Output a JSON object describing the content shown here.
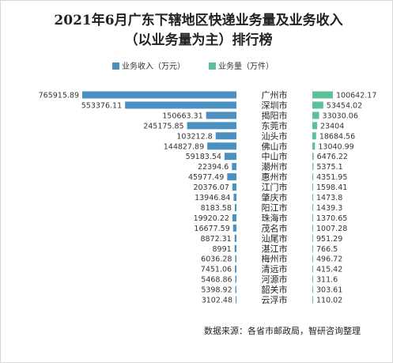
{
  "chart_data": {
    "type": "bar",
    "title_line1": "2021年6月广东下辖地区快递业务量及业务收入",
    "title_line2": "（以业务量为主）排行榜",
    "categories": [
      "广州市",
      "深圳市",
      "揭阳市",
      "东莞市",
      "汕头市",
      "佛山市",
      "中山市",
      "潮州市",
      "惠州市",
      "江门市",
      "肇庆市",
      "阳江市",
      "珠海市",
      "茂名市",
      "汕尾市",
      "湛江市",
      "梅州市",
      "清远市",
      "河源市",
      "韶关市",
      "云浮市"
    ],
    "series": [
      {
        "name": "业务收入（万元）",
        "color": "#4a90c0",
        "values": [
          765915.89,
          553376.11,
          150663.31,
          245175.85,
          103212.8,
          144827.89,
          59183.54,
          22394.6,
          45977.49,
          20376.07,
          13946.84,
          8183.58,
          19920.22,
          16677.59,
          8872.31,
          8991,
          6036.28,
          7451.06,
          5468.86,
          5398.92,
          3102.48
        ]
      },
      {
        "name": "业务量（万件）",
        "color": "#5cc09a",
        "values": [
          100642.17,
          53454.02,
          33030.06,
          23404,
          18684.56,
          13040.99,
          6476.22,
          5375.1,
          4351.95,
          1598.41,
          1473.8,
          1439.3,
          1370.65,
          1007.28,
          951.29,
          766.5,
          496.72,
          415.42,
          311.6,
          303.61,
          110.02
        ]
      }
    ],
    "source": "数据来源：各省市邮政局，智研咨询整理"
  }
}
